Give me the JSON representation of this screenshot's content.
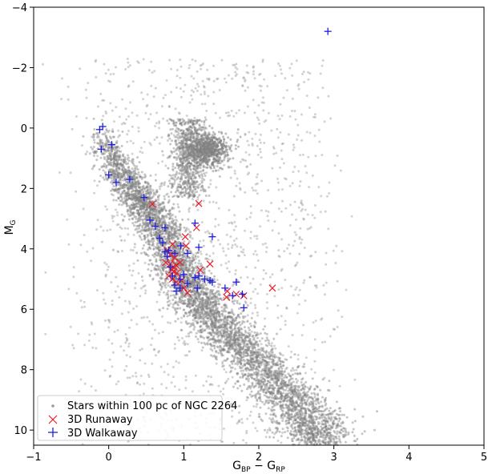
{
  "chart_data": {
    "type": "scatter",
    "xlabel": "G_BP − G_RP",
    "ylabel": "M_G",
    "xlim": [
      -1,
      5
    ],
    "ylim": [
      10.5,
      -4
    ],
    "y_inverted": true,
    "xticks": [
      -1,
      0,
      1,
      2,
      3,
      4,
      5
    ],
    "xtick_labels": [
      "−1",
      "0",
      "1",
      "2",
      "3",
      "4",
      "5"
    ],
    "yticks": [
      -4,
      -2,
      0,
      2,
      4,
      6,
      8,
      10
    ],
    "ytick_labels": [
      "−4",
      "−2",
      "0",
      "2",
      "4",
      "6",
      "8",
      "10"
    ],
    "grid": false,
    "legend_position": "bottom-left",
    "colors": {
      "background": "#808080",
      "runaway": "#e8202a",
      "walkaway": "#1f1fe0"
    },
    "background_features": [
      {
        "name": "main-sequence",
        "points": [
          [
            -0.1,
            0.2
          ],
          [
            0.1,
            1.2
          ],
          [
            0.3,
            2.0
          ],
          [
            0.5,
            2.6
          ],
          [
            0.7,
            3.4
          ],
          [
            0.9,
            4.5
          ],
          [
            1.1,
            5.4
          ],
          [
            1.4,
            6.3
          ],
          [
            1.8,
            7.3
          ],
          [
            2.2,
            8.4
          ],
          [
            2.6,
            9.5
          ],
          [
            2.9,
            10.5
          ]
        ],
        "width_data": 0.35
      },
      {
        "name": "red-clump",
        "center": [
          1.3,
          0.7
        ],
        "spread": [
          0.15,
          0.3
        ]
      }
    ],
    "series": [
      {
        "name": "Stars within 100 pc of NGC 2264",
        "marker": "point",
        "color": "#808080"
      },
      {
        "name": "3D Runaway",
        "marker": "x",
        "color": "#e8202a",
        "points": [
          [
            0.58,
            2.52
          ],
          [
            1.2,
            2.5
          ],
          [
            1.17,
            3.3
          ],
          [
            1.02,
            3.6
          ],
          [
            1.03,
            3.9
          ],
          [
            0.85,
            3.85
          ],
          [
            0.78,
            4.05
          ],
          [
            0.82,
            4.2
          ],
          [
            0.88,
            4.3
          ],
          [
            0.76,
            4.45
          ],
          [
            0.82,
            4.5
          ],
          [
            0.86,
            4.6
          ],
          [
            0.9,
            4.55
          ],
          [
            0.95,
            4.45
          ],
          [
            0.84,
            4.7
          ],
          [
            0.87,
            4.75
          ],
          [
            0.91,
            4.8
          ],
          [
            0.8,
            4.9
          ],
          [
            0.85,
            5.0
          ],
          [
            0.9,
            5.1
          ],
          [
            0.97,
            5.05
          ],
          [
            1.35,
            4.5
          ],
          [
            1.22,
            4.7
          ],
          [
            1.0,
            5.3
          ],
          [
            1.05,
            5.45
          ],
          [
            1.58,
            5.4
          ],
          [
            1.57,
            5.6
          ],
          [
            1.7,
            5.5
          ],
          [
            1.8,
            5.55
          ],
          [
            2.18,
            5.3
          ]
        ]
      },
      {
        "name": "3D Walkaway",
        "marker": "+",
        "color": "#1f1fe0",
        "points": [
          [
            2.92,
            -3.2
          ],
          [
            -0.08,
            -0.05
          ],
          [
            -0.12,
            0.05
          ],
          [
            -0.1,
            0.7
          ],
          [
            0.04,
            0.55
          ],
          [
            0.0,
            1.55
          ],
          [
            0.1,
            1.8
          ],
          [
            0.28,
            1.7
          ],
          [
            0.47,
            2.3
          ],
          [
            0.55,
            3.05
          ],
          [
            0.62,
            3.25
          ],
          [
            0.75,
            3.3
          ],
          [
            0.68,
            3.65
          ],
          [
            0.72,
            3.8
          ],
          [
            0.75,
            4.1
          ],
          [
            0.78,
            4.25
          ],
          [
            0.8,
            4.05
          ],
          [
            0.88,
            4.15
          ],
          [
            0.96,
            3.9
          ],
          [
            1.15,
            3.15
          ],
          [
            1.2,
            3.95
          ],
          [
            1.38,
            3.6
          ],
          [
            1.05,
            4.15
          ],
          [
            0.82,
            4.6
          ],
          [
            0.85,
            4.9
          ],
          [
            0.88,
            5.2
          ],
          [
            0.9,
            5.4
          ],
          [
            0.95,
            5.3
          ],
          [
            1.05,
            5.15
          ],
          [
            1.15,
            4.95
          ],
          [
            1.2,
            4.9
          ],
          [
            1.28,
            5.0
          ],
          [
            1.35,
            5.05
          ],
          [
            1.38,
            5.1
          ],
          [
            1.18,
            5.3
          ],
          [
            1.55,
            5.3
          ],
          [
            1.65,
            5.55
          ],
          [
            1.7,
            5.1
          ],
          [
            1.78,
            5.5
          ],
          [
            1.8,
            5.95
          ],
          [
            0.95,
            5.0
          ],
          [
            1.0,
            4.85
          ]
        ]
      }
    ]
  }
}
